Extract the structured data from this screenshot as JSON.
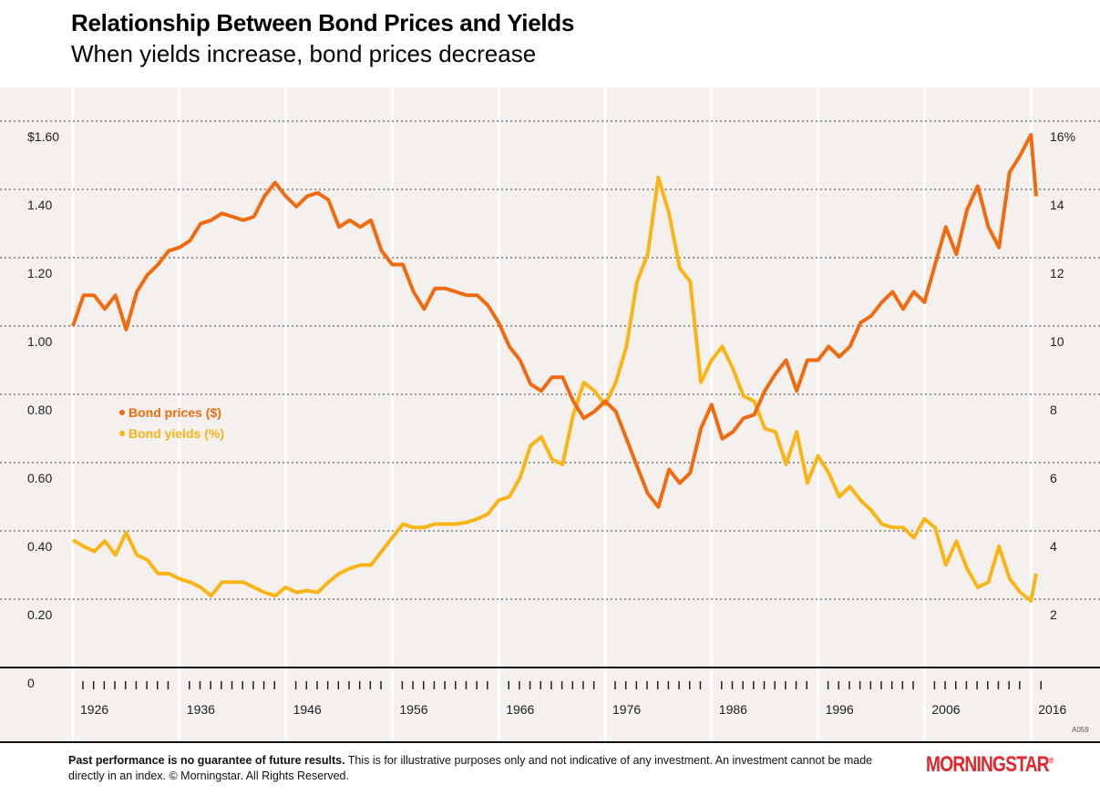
{
  "header": {
    "title": "Relationship Between Bond Prices and Yields",
    "subtitle": "When yields increase, bond prices decrease"
  },
  "footer": {
    "bold": "Past performance is no guarantee of future results.",
    "text": " This is for illustrative purposes only and not indicative of any investment. An investment cannot be made directly in an index. © Morningstar. All Rights Reserved.",
    "logo": "MORNINGSTAR",
    "code": "A059"
  },
  "chart_data": {
    "type": "line",
    "title": "Relationship Between Bond Prices and Yields",
    "subtitle": "When yields increase, bond prices decrease",
    "xlim": [
      1926,
      2016.5
    ],
    "x_tick_labels": [
      "1926",
      "1936",
      "1946",
      "1956",
      "1966",
      "1976",
      "1986",
      "1996",
      "2006",
      "2016"
    ],
    "left_axis": {
      "ylim": [
        0,
        1.6
      ],
      "tick_labels": [
        "0",
        "0.20",
        "0.40",
        "0.60",
        "0.80",
        "1.00",
        "1.20",
        "1.40",
        "$1.60"
      ],
      "ticks": [
        0,
        0.2,
        0.4,
        0.6,
        0.8,
        1.0,
        1.2,
        1.4,
        1.6
      ]
    },
    "right_axis": {
      "ylim": [
        0,
        16
      ],
      "tick_labels": [
        "2",
        "4",
        "6",
        "8",
        "10",
        "12",
        "14",
        "16%"
      ],
      "ticks": [
        2,
        4,
        6,
        8,
        10,
        12,
        14,
        16
      ]
    },
    "grid": true,
    "legend": "left-middle",
    "x": [
      1926,
      1927,
      1928,
      1929,
      1930,
      1931,
      1932,
      1933,
      1934,
      1935,
      1936,
      1937,
      1938,
      1939,
      1940,
      1941,
      1942,
      1943,
      1944,
      1945,
      1946,
      1947,
      1948,
      1949,
      1950,
      1951,
      1952,
      1953,
      1954,
      1955,
      1956,
      1957,
      1958,
      1959,
      1960,
      1961,
      1962,
      1963,
      1964,
      1965,
      1966,
      1967,
      1968,
      1969,
      1970,
      1971,
      1972,
      1973,
      1974,
      1975,
      1976,
      1977,
      1978,
      1979,
      1980,
      1981,
      1982,
      1983,
      1984,
      1985,
      1986,
      1987,
      1988,
      1989,
      1990,
      1991,
      1992,
      1993,
      1994,
      1995,
      1996,
      1997,
      1998,
      1999,
      2000,
      2001,
      2002,
      2003,
      2004,
      2005,
      2006,
      2007,
      2008,
      2009,
      2010,
      2011,
      2012,
      2013,
      2014,
      2015,
      2016,
      2016.5
    ],
    "series": [
      {
        "name": "Bond prices ($)",
        "axis": "left",
        "color": "#f26a0f",
        "values": [
          1.0,
          1.09,
          1.09,
          1.05,
          1.09,
          0.99,
          1.1,
          1.15,
          1.18,
          1.22,
          1.23,
          1.25,
          1.3,
          1.31,
          1.33,
          1.32,
          1.31,
          1.32,
          1.38,
          1.42,
          1.38,
          1.35,
          1.38,
          1.39,
          1.37,
          1.29,
          1.31,
          1.29,
          1.31,
          1.22,
          1.18,
          1.18,
          1.1,
          1.05,
          1.11,
          1.11,
          1.1,
          1.09,
          1.09,
          1.06,
          1.01,
          0.94,
          0.9,
          0.83,
          0.81,
          0.85,
          0.85,
          0.78,
          0.73,
          0.75,
          0.78,
          0.75,
          0.67,
          0.59,
          0.51,
          0.47,
          0.58,
          0.54,
          0.57,
          0.7,
          0.77,
          0.67,
          0.69,
          0.73,
          0.74,
          0.81,
          0.86,
          0.9,
          0.81,
          0.9,
          0.9,
          0.94,
          0.91,
          0.94,
          1.01,
          1.03,
          1.07,
          1.1,
          1.05,
          1.1,
          1.07,
          1.18,
          1.29,
          1.21,
          1.34,
          1.41,
          1.29,
          1.23,
          1.45,
          1.5,
          1.56,
          1.38
        ]
      },
      {
        "name": "Bond yields (%)",
        "axis": "right",
        "color": "#fbb416",
        "values": [
          3.73,
          3.55,
          3.4,
          3.7,
          3.3,
          3.95,
          3.3,
          3.15,
          2.75,
          2.75,
          2.6,
          2.5,
          2.35,
          2.1,
          2.5,
          2.5,
          2.5,
          2.35,
          2.2,
          2.1,
          2.35,
          2.2,
          2.25,
          2.2,
          2.5,
          2.75,
          2.9,
          3.0,
          3.0,
          3.4,
          3.8,
          4.2,
          4.1,
          4.1,
          4.2,
          4.2,
          4.2,
          4.25,
          4.35,
          4.5,
          4.9,
          5.0,
          5.55,
          6.5,
          6.75,
          6.1,
          5.95,
          7.4,
          8.35,
          8.1,
          7.7,
          8.35,
          9.4,
          11.3,
          12.1,
          14.35,
          13.3,
          11.7,
          11.3,
          8.35,
          9.0,
          9.4,
          8.75,
          7.95,
          7.8,
          7.0,
          6.9,
          5.95,
          6.9,
          5.4,
          6.2,
          5.7,
          5.0,
          5.3,
          4.9,
          4.6,
          4.2,
          4.1,
          4.1,
          3.8,
          4.35,
          4.1,
          3.0,
          3.7,
          2.9,
          2.35,
          2.5,
          3.55,
          2.6,
          2.2,
          1.95,
          2.75
        ]
      }
    ]
  }
}
